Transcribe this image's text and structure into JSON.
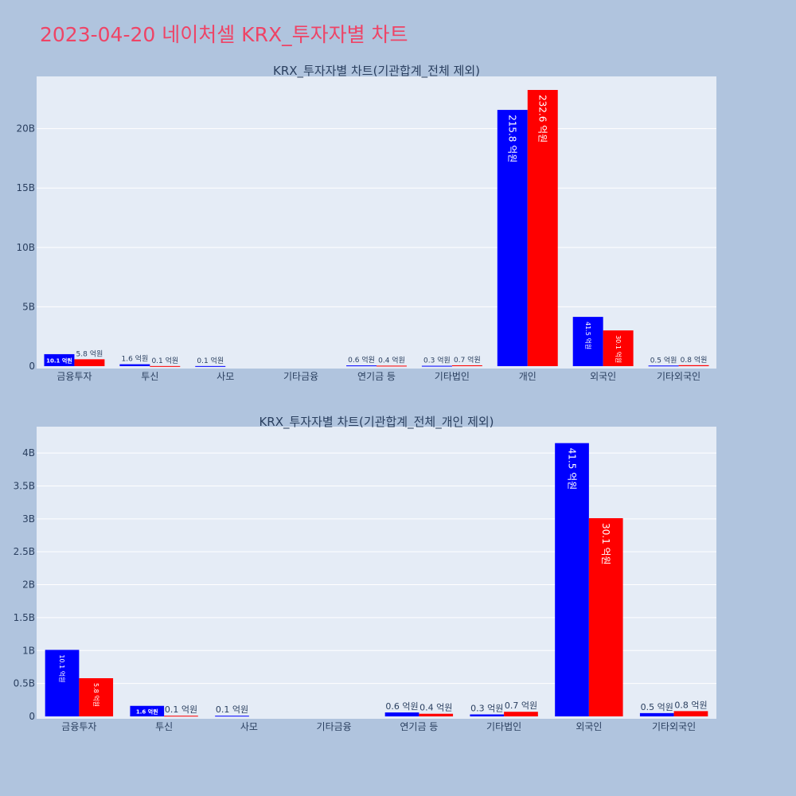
{
  "page": {
    "title": "2023-04-20 네이처셀 KRX_투자자별 차트"
  },
  "colors": {
    "background": "#b0c4de",
    "plot_bg": "#e5ecf6",
    "grid": "#ffffff",
    "title": "#ee4466",
    "text": "#2a3f5f",
    "buy": "#0000ff",
    "sell": "#ff0000"
  },
  "chart_data": [
    {
      "type": "bar",
      "title": "KRX_투자자별 차트(기관합계_전체 제외)",
      "categories": [
        "금융투자",
        "투신",
        "사모",
        "기타금융",
        "연기금 등",
        "기타법인",
        "개인",
        "외국인",
        "기타외국인"
      ],
      "series": [
        {
          "values": [
            1.01,
            0.16,
            0.01,
            0,
            0.06,
            0.03,
            21.58,
            4.15,
            0.05
          ],
          "labels": [
            "10.1 억원",
            "1.6 억원",
            "0.1 억원",
            "",
            "0.6 억원",
            "0.3 억원",
            "215.8 억원",
            "41.5 억원",
            "0.5 억원"
          ]
        },
        {
          "values": [
            0.58,
            0.01,
            0,
            0,
            0.04,
            0.07,
            23.26,
            3.01,
            0.08
          ],
          "labels": [
            "5.8 억원",
            "0.1 억원",
            "",
            "",
            "0.4 억원",
            "0.7 억원",
            "232.6 억원",
            "30.1 억원",
            "0.8 억원"
          ]
        }
      ],
      "yticks": [
        "0",
        "5B",
        "10B",
        "15B",
        "20B"
      ],
      "ytick_values": [
        0,
        5,
        10,
        15,
        20
      ],
      "ylim": [
        0,
        24.4
      ],
      "grid": true
    },
    {
      "type": "bar",
      "title": "KRX_투자자별 차트(기관합계_전체_개인 제외)",
      "categories": [
        "금융투자",
        "투신",
        "사모",
        "기타금융",
        "연기금 등",
        "기타법인",
        "외국인",
        "기타외국인"
      ],
      "series": [
        {
          "values": [
            1.01,
            0.16,
            0.01,
            0,
            0.06,
            0.03,
            4.15,
            0.05
          ],
          "labels": [
            "10.1 억원",
            "1.6 억원",
            "0.1 억원",
            "",
            "0.6 억원",
            "0.3 억원",
            "41.5 억원",
            "0.5 억원"
          ]
        },
        {
          "values": [
            0.58,
            0.01,
            0,
            0,
            0.04,
            0.07,
            3.01,
            0.08
          ],
          "labels": [
            "5.8 억원",
            "0.1 억원",
            "",
            "",
            "0.4 억원",
            "0.7 억원",
            "30.1 억원",
            "0.8 억원"
          ]
        }
      ],
      "yticks": [
        "0",
        "0.5B",
        "1B",
        "1.5B",
        "2B",
        "2.5B",
        "3B",
        "3.5B",
        "4B"
      ],
      "ytick_values": [
        0,
        0.5,
        1,
        1.5,
        2,
        2.5,
        3,
        3.5,
        4
      ],
      "ylim": [
        0,
        4.4
      ],
      "grid": true
    }
  ]
}
